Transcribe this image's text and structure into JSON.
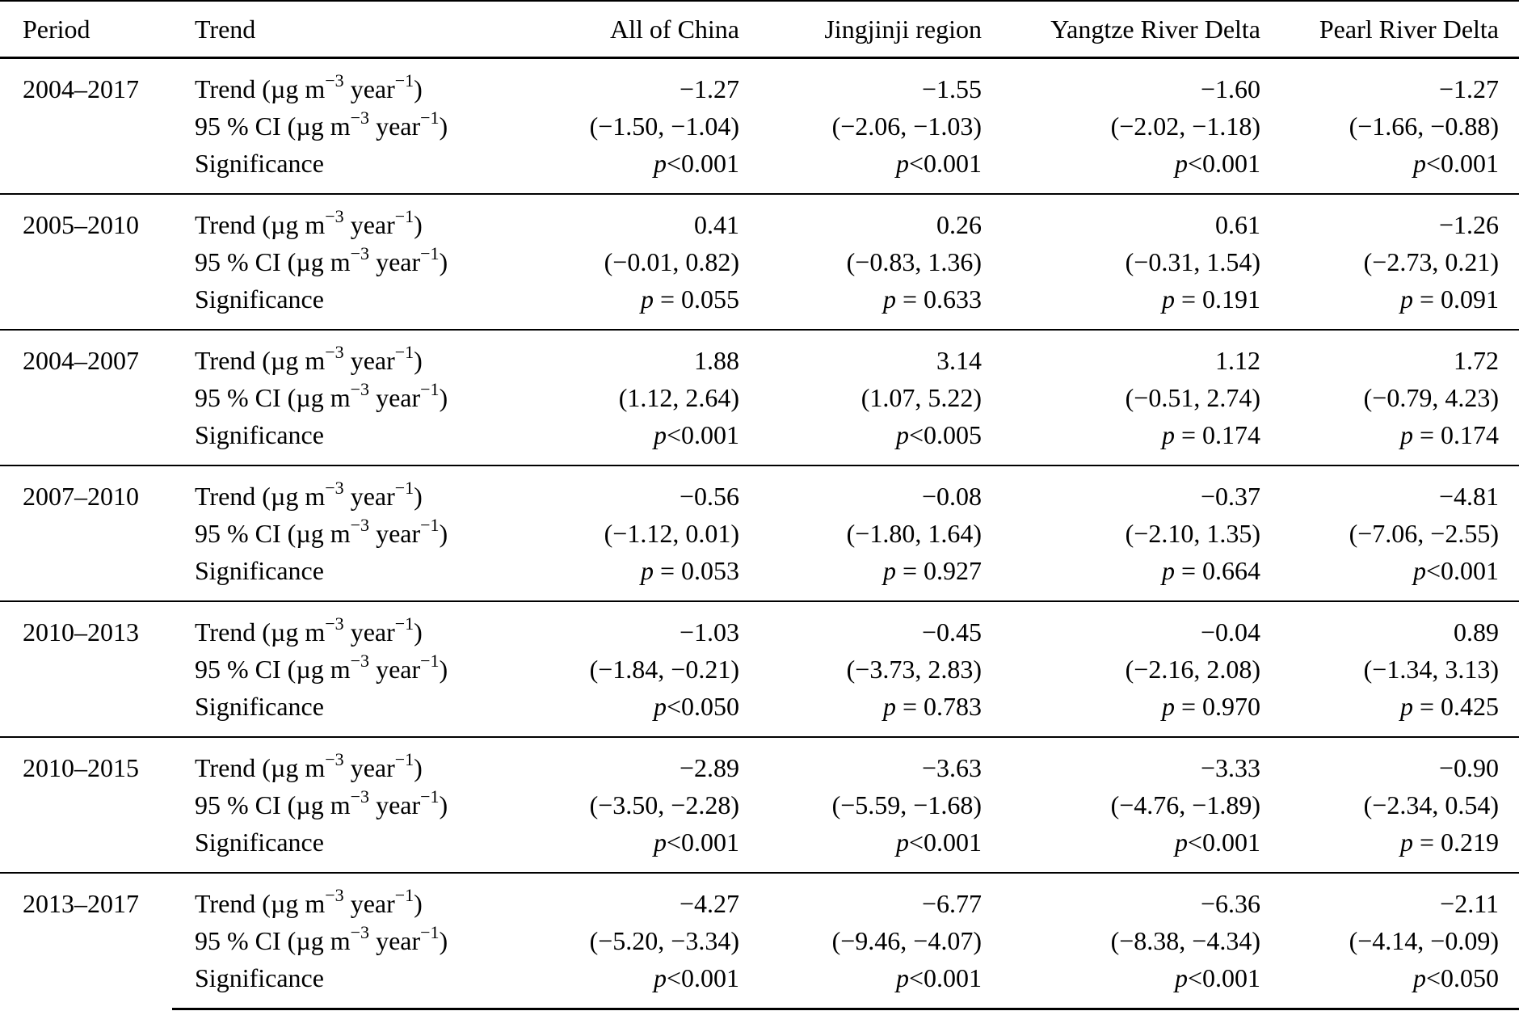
{
  "table": {
    "columns": [
      "Period",
      "Trend",
      "All of China",
      "Jingjinji region",
      "Yangtze River Delta",
      "Pearl River Delta"
    ],
    "row_labels": {
      "trend_parts": [
        "Trend (µg m",
        "−3",
        " year",
        "−1",
        ")"
      ],
      "ci_parts": [
        "95 % CI (µg m",
        "−3",
        " year",
        "−1",
        ")"
      ],
      "significance": "Significance"
    },
    "blocks": [
      {
        "period": "2004–2017",
        "trend": [
          "−1.27",
          "−1.55",
          "−1.60",
          "−1.27"
        ],
        "ci": [
          "(−1.50, −1.04)",
          "(−2.06, −1.03)",
          "(−2.02, −1.18)",
          "(−1.66, −0.88)"
        ],
        "significance": [
          "p<0.001",
          "p<0.001",
          "p<0.001",
          "p<0.001"
        ]
      },
      {
        "period": "2005–2010",
        "trend": [
          "0.41",
          "0.26",
          "0.61",
          "−1.26"
        ],
        "ci": [
          "(−0.01, 0.82)",
          "(−0.83, 1.36)",
          "(−0.31, 1.54)",
          "(−2.73, 0.21)"
        ],
        "significance": [
          "p = 0.055",
          "p = 0.633",
          "p = 0.191",
          "p = 0.091"
        ]
      },
      {
        "period": "2004–2007",
        "trend": [
          "1.88",
          "3.14",
          "1.12",
          "1.72"
        ],
        "ci": [
          "(1.12, 2.64)",
          "(1.07, 5.22)",
          "(−0.51, 2.74)",
          "(−0.79, 4.23)"
        ],
        "significance": [
          "p<0.001",
          "p<0.005",
          "p = 0.174",
          "p = 0.174"
        ]
      },
      {
        "period": "2007–2010",
        "trend": [
          "−0.56",
          "−0.08",
          "−0.37",
          "−4.81"
        ],
        "ci": [
          "(−1.12, 0.01)",
          "(−1.80, 1.64)",
          "(−2.10, 1.35)",
          "(−7.06, −2.55)"
        ],
        "significance": [
          "p = 0.053",
          "p = 0.927",
          "p = 0.664",
          "p<0.001"
        ]
      },
      {
        "period": "2010–2013",
        "trend": [
          "−1.03",
          "−0.45",
          "−0.04",
          "0.89"
        ],
        "ci": [
          "(−1.84, −0.21)",
          "(−3.73, 2.83)",
          "(−2.16, 2.08)",
          "(−1.34, 3.13)"
        ],
        "significance": [
          "p<0.050",
          "p = 0.783",
          "p = 0.970",
          "p = 0.425"
        ]
      },
      {
        "period": "2010–2015",
        "trend": [
          "−2.89",
          "−3.63",
          "−3.33",
          "−0.90"
        ],
        "ci": [
          "(−3.50, −2.28)",
          "(−5.59, −1.68)",
          "(−4.76, −1.89)",
          "(−2.34, 0.54)"
        ],
        "significance": [
          "p<0.001",
          "p<0.001",
          "p<0.001",
          "p = 0.219"
        ]
      },
      {
        "period": "2013–2017",
        "trend": [
          "−4.27",
          "−6.77",
          "−6.36",
          "−2.11"
        ],
        "ci": [
          "(−5.20, −3.34)",
          "(−9.46, −4.07)",
          "(−8.38, −4.34)",
          "(−4.14, −0.09)"
        ],
        "significance": [
          "p<0.001",
          "p<0.001",
          "p<0.001",
          "p<0.050"
        ]
      }
    ]
  }
}
